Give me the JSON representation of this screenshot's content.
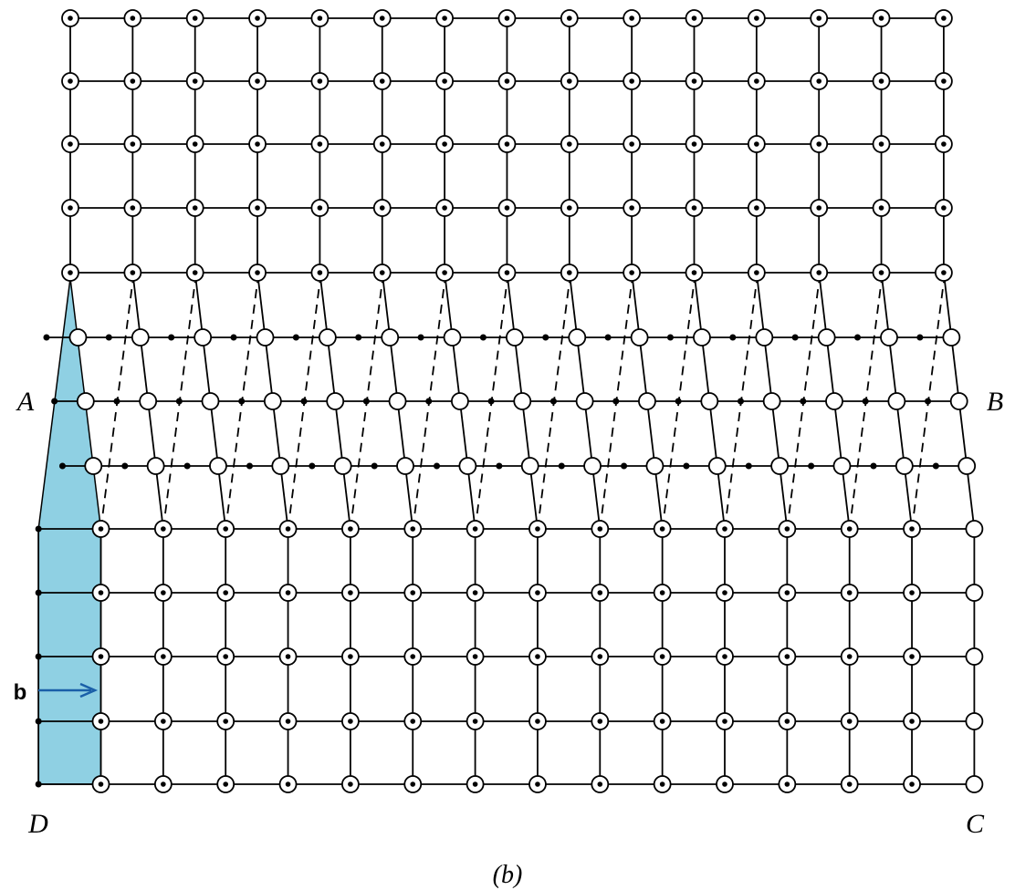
{
  "labels": {
    "a": "A",
    "b": "B",
    "c": "C",
    "d": "D"
  },
  "burgers_vector": "b",
  "caption": "(b)"
}
